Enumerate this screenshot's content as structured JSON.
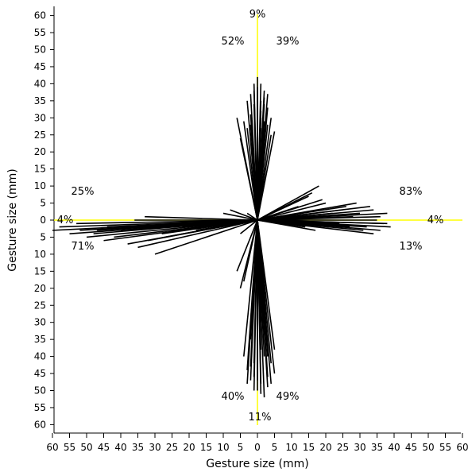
{
  "chart_data": {
    "type": "scatter",
    "title": "",
    "xlabel": "Gesture size (mm)",
    "ylabel": "Gesture size (mm)",
    "xlim": [
      -60,
      60
    ],
    "ylim": [
      -60,
      60
    ],
    "x_tick_values": [
      -60,
      -55,
      -50,
      -45,
      -40,
      -35,
      -30,
      -25,
      -20,
      -15,
      -10,
      -5,
      0,
      5,
      10,
      15,
      20,
      25,
      30,
      35,
      40,
      45,
      50,
      55,
      60
    ],
    "x_tick_labels": [
      "60",
      "55",
      "50",
      "45",
      "40",
      "35",
      "30",
      "25",
      "20",
      "15",
      "10",
      "5",
      "0",
      "5",
      "10",
      "15",
      "20",
      "25",
      "30",
      "35",
      "40",
      "45",
      "50",
      "55",
      "60"
    ],
    "y_tick_values": [
      60,
      55,
      50,
      45,
      40,
      35,
      30,
      25,
      20,
      15,
      10,
      5,
      0,
      -5,
      -10,
      -15,
      -20,
      -25,
      -30,
      -35,
      -40,
      -45,
      -50,
      -55,
      -60
    ],
    "y_tick_labels": [
      "60",
      "55",
      "50",
      "45",
      "40",
      "35",
      "30",
      "25",
      "20",
      "15",
      "10",
      "5",
      "0",
      "5",
      "10",
      "15",
      "20",
      "25",
      "30",
      "35",
      "40",
      "45",
      "50",
      "55",
      "60"
    ],
    "grid": false,
    "reference_axes_color": "#ffff00",
    "stroke_color": "#000000",
    "gesture_strokes": {
      "description_of_units": "endpoints in mm from origin",
      "up": [
        [
          0,
          42
        ],
        [
          1,
          40
        ],
        [
          -1,
          38
        ],
        [
          2,
          36
        ],
        [
          -3,
          35
        ],
        [
          3,
          33
        ],
        [
          -2,
          37
        ],
        [
          1,
          35
        ],
        [
          4,
          30
        ],
        [
          -4,
          29
        ],
        [
          0,
          39
        ],
        [
          2,
          38
        ],
        [
          -1,
          34
        ],
        [
          5,
          26
        ],
        [
          -6,
          30
        ],
        [
          1,
          32
        ],
        [
          3,
          28
        ],
        [
          -2,
          31
        ],
        [
          0,
          36
        ],
        [
          2,
          34
        ],
        [
          -3,
          27
        ],
        [
          4,
          25
        ],
        [
          -5,
          24
        ],
        [
          1,
          30
        ],
        [
          3,
          37
        ],
        [
          -1,
          40
        ],
        [
          0,
          33
        ],
        [
          2,
          29
        ],
        [
          -2,
          28
        ],
        [
          1,
          27
        ]
      ],
      "down": [
        [
          0,
          -50
        ],
        [
          1,
          -48
        ],
        [
          -1,
          -46
        ],
        [
          2,
          -52
        ],
        [
          -2,
          -47
        ],
        [
          3,
          -49
        ],
        [
          -3,
          -44
        ],
        [
          4,
          -42
        ],
        [
          -4,
          -40
        ],
        [
          5,
          -45
        ],
        [
          -5,
          -20
        ],
        [
          -4,
          -18
        ],
        [
          2,
          -40
        ],
        [
          1,
          -38
        ],
        [
          0,
          -44
        ],
        [
          -1,
          -42
        ],
        [
          3,
          -46
        ],
        [
          -2,
          -35
        ],
        [
          4,
          -48
        ],
        [
          -3,
          -48
        ],
        [
          1,
          -30
        ],
        [
          2,
          -33
        ],
        [
          0,
          -36
        ],
        [
          -1,
          -50
        ],
        [
          3,
          -40
        ],
        [
          -2,
          -43
        ],
        [
          5,
          -38
        ],
        [
          -6,
          -15
        ],
        [
          1,
          -51
        ],
        [
          0,
          -47
        ]
      ],
      "right": [
        [
          38,
          2
        ],
        [
          36,
          1
        ],
        [
          34,
          3
        ],
        [
          37,
          -1
        ],
        [
          35,
          0
        ],
        [
          33,
          4
        ],
        [
          30,
          2
        ],
        [
          32,
          -2
        ],
        [
          28,
          1
        ],
        [
          25,
          3
        ],
        [
          22,
          2
        ],
        [
          20,
          5
        ],
        [
          18,
          10
        ],
        [
          15,
          7
        ],
        [
          12,
          4
        ],
        [
          10,
          -1
        ],
        [
          39,
          -2
        ],
        [
          36,
          -3
        ],
        [
          31,
          -3
        ],
        [
          27,
          -2
        ],
        [
          24,
          -1
        ],
        [
          29,
          5
        ],
        [
          26,
          4
        ],
        [
          34,
          -4
        ],
        [
          21,
          -2
        ],
        [
          17,
          -3
        ],
        [
          14,
          -2
        ],
        [
          16,
          8
        ],
        [
          19,
          6
        ],
        [
          38,
          -1
        ]
      ],
      "left": [
        [
          -60,
          -3
        ],
        [
          -58,
          -2
        ],
        [
          -55,
          -4
        ],
        [
          -52,
          -3
        ],
        [
          -50,
          -5
        ],
        [
          -48,
          -4
        ],
        [
          -45,
          -6
        ],
        [
          -42,
          -5
        ],
        [
          -40,
          -3
        ],
        [
          -38,
          -7
        ],
        [
          -35,
          -8
        ],
        [
          -32,
          -6
        ],
        [
          -30,
          -10
        ],
        [
          -28,
          -4
        ],
        [
          -25,
          -3
        ],
        [
          -22,
          -2
        ],
        [
          -20,
          -1
        ],
        [
          -18,
          -3
        ],
        [
          -15,
          -2
        ],
        [
          -12,
          -1
        ],
        [
          -10,
          2
        ],
        [
          -8,
          3
        ],
        [
          -5,
          -4
        ],
        [
          -3,
          2
        ],
        [
          -33,
          1
        ],
        [
          -36,
          0
        ],
        [
          -44,
          -2
        ],
        [
          -47,
          -3
        ],
        [
          -53,
          -1
        ],
        [
          -27,
          -5
        ]
      ]
    }
  },
  "labels": {
    "up_pct": "9%",
    "up_left_pct": "52%",
    "up_right_pct": "39%",
    "right_pct": "4%",
    "right_up_pct": "83%",
    "right_down_pct": "13%",
    "left_pct": "4%",
    "left_up_pct": "25%",
    "left_down_pct": "71%",
    "down_pct": "11%",
    "down_left_pct": "40%",
    "down_right_pct": "49%"
  }
}
